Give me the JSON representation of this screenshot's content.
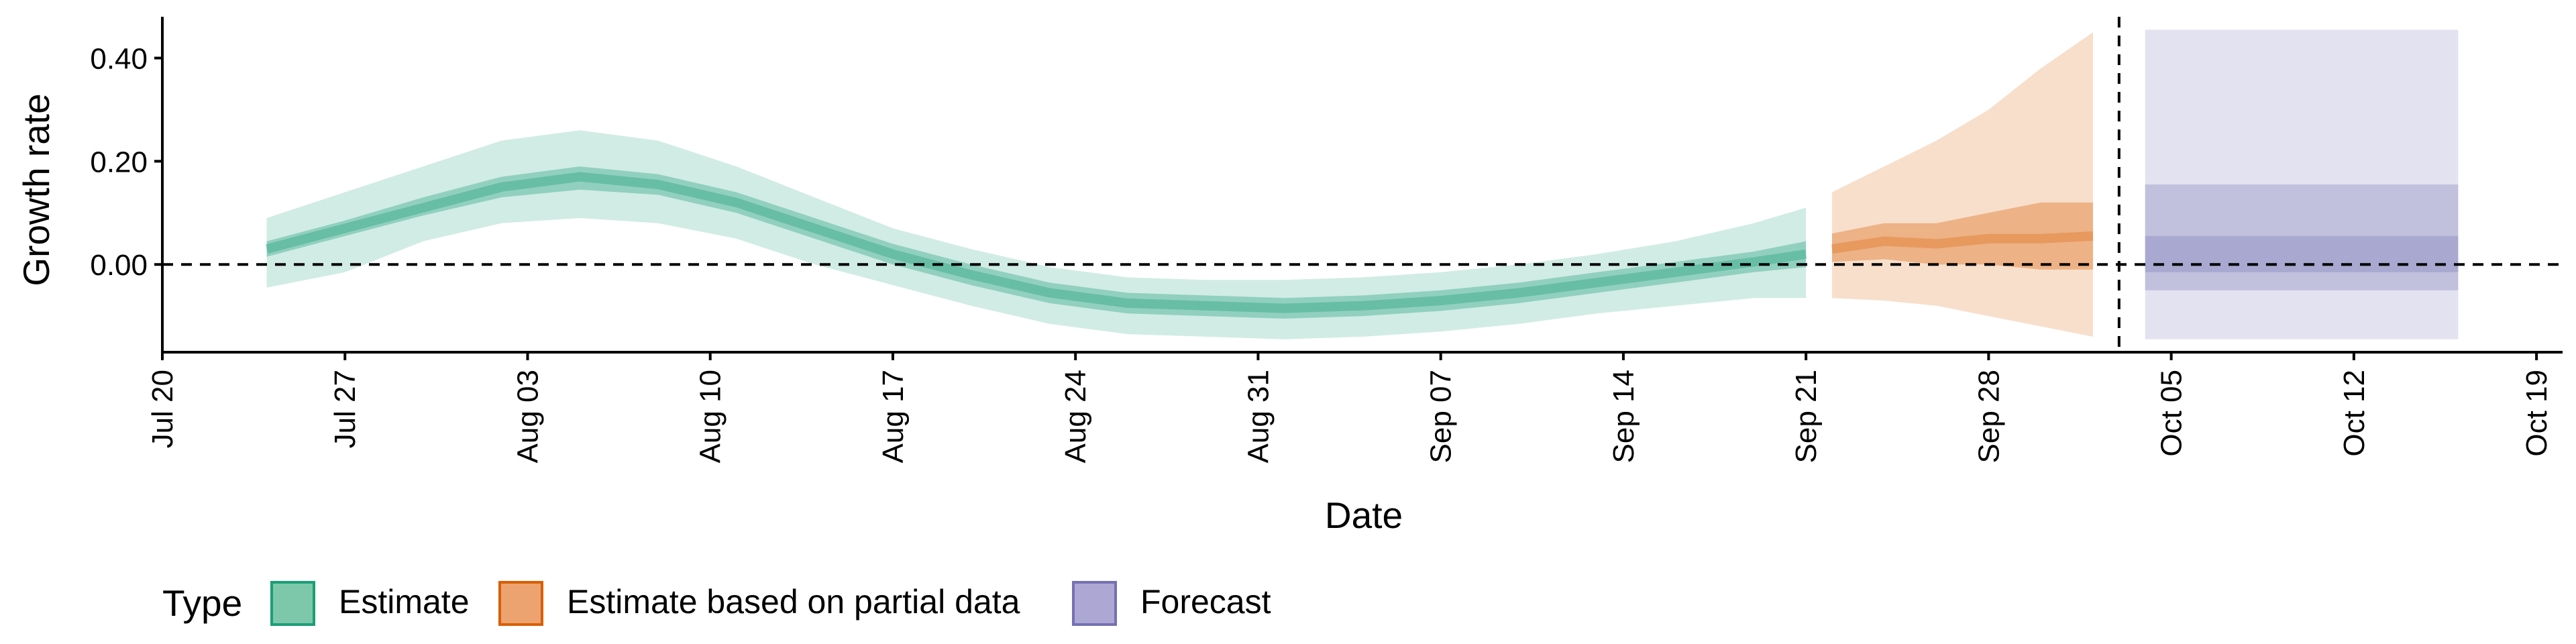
{
  "chart_data": {
    "type": "area",
    "title": "",
    "xlabel": "Date",
    "ylabel": "Growth rate",
    "x_ticks": [
      "Jul 20",
      "Jul 27",
      "Aug 03",
      "Aug 10",
      "Aug 17",
      "Aug 24",
      "Aug 31",
      "Sep 07",
      "Sep 14",
      "Sep 21",
      "Sep 28",
      "Oct 05",
      "Oct 12",
      "Oct 19"
    ],
    "y_ticks": [
      "0.00",
      "0.20",
      "0.40"
    ],
    "ylim": [
      -0.17,
      0.48
    ],
    "xlim": [
      "2020-07-20",
      "2020-10-20"
    ],
    "grid": false,
    "reference_line_y": 0,
    "forecast_start": "2020-10-03",
    "legend": {
      "title": "Type",
      "position": "bottom",
      "items": [
        {
          "label": "Estimate",
          "fill": "#7dc8ab",
          "stroke": "#1b9e77"
        },
        {
          "label": "Estimate based on partial data",
          "fill": "#eca36f",
          "stroke": "#d95f02"
        },
        {
          "label": "Forecast",
          "fill": "#aca8d3",
          "stroke": "#7570b3"
        }
      ]
    },
    "series": [
      {
        "name": "Estimate",
        "color": "#1b9e77",
        "x": [
          "2020-07-24",
          "2020-07-27",
          "2020-07-30",
          "2020-08-02",
          "2020-08-05",
          "2020-08-08",
          "2020-08-11",
          "2020-08-14",
          "2020-08-17",
          "2020-08-20",
          "2020-08-23",
          "2020-08-26",
          "2020-08-29",
          "2020-09-01",
          "2020-09-04",
          "2020-09-07",
          "2020-09-10",
          "2020-09-13",
          "2020-09-16",
          "2020-09-19",
          "2020-09-21"
        ],
        "median": [
          0.03,
          0.07,
          0.11,
          0.15,
          0.17,
          0.155,
          0.12,
          0.07,
          0.02,
          -0.02,
          -0.055,
          -0.075,
          -0.08,
          -0.085,
          -0.08,
          -0.07,
          -0.055,
          -0.035,
          -0.015,
          0.005,
          0.02
        ],
        "lower_50": [
          0.015,
          0.055,
          0.095,
          0.13,
          0.145,
          0.135,
          0.1,
          0.05,
          0.0,
          -0.04,
          -0.075,
          -0.095,
          -0.1,
          -0.105,
          -0.1,
          -0.09,
          -0.075,
          -0.055,
          -0.035,
          -0.015,
          -0.005
        ],
        "upper_50": [
          0.045,
          0.085,
          0.13,
          0.17,
          0.19,
          0.175,
          0.14,
          0.09,
          0.04,
          0.0,
          -0.035,
          -0.055,
          -0.06,
          -0.065,
          -0.06,
          -0.05,
          -0.035,
          -0.015,
          0.005,
          0.025,
          0.045
        ],
        "lower_90": [
          -0.045,
          -0.015,
          0.045,
          0.08,
          0.09,
          0.08,
          0.05,
          0.0,
          -0.04,
          -0.08,
          -0.115,
          -0.135,
          -0.14,
          -0.145,
          -0.14,
          -0.13,
          -0.115,
          -0.095,
          -0.08,
          -0.065,
          -0.065
        ],
        "upper_90": [
          0.09,
          0.14,
          0.19,
          0.24,
          0.26,
          0.24,
          0.19,
          0.13,
          0.07,
          0.03,
          -0.005,
          -0.025,
          -0.03,
          -0.03,
          -0.025,
          -0.015,
          0.0,
          0.02,
          0.045,
          0.08,
          0.11
        ]
      },
      {
        "name": "Estimate based on partial data",
        "color": "#d95f02",
        "x": [
          "2020-09-22",
          "2020-09-24",
          "2020-09-26",
          "2020-09-28",
          "2020-09-30",
          "2020-10-02"
        ],
        "median": [
          0.03,
          0.045,
          0.04,
          0.05,
          0.05,
          0.055
        ],
        "lower_50": [
          0.005,
          0.01,
          0.0,
          0.0,
          -0.01,
          -0.01
        ],
        "upper_50": [
          0.06,
          0.08,
          0.08,
          0.1,
          0.12,
          0.12
        ],
        "lower_90": [
          -0.065,
          -0.07,
          -0.08,
          -0.1,
          -0.12,
          -0.14
        ],
        "upper_90": [
          0.14,
          0.19,
          0.24,
          0.3,
          0.38,
          0.45
        ]
      },
      {
        "name": "Forecast",
        "color": "#7570b3",
        "x": [
          "2020-10-04",
          "2020-10-16"
        ],
        "median": [
          0.0,
          0.0
        ],
        "lower_30": [
          -0.015,
          -0.015
        ],
        "upper_30": [
          0.055,
          0.055
        ],
        "lower_60": [
          -0.05,
          -0.05
        ],
        "upper_60": [
          0.155,
          0.155
        ],
        "lower_90": [
          -0.145,
          -0.145
        ],
        "upper_90": [
          0.455,
          0.455
        ]
      }
    ]
  }
}
